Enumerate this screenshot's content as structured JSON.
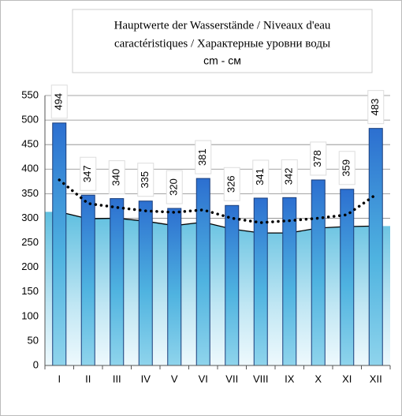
{
  "chart_data": {
    "type": "bar",
    "title": [
      "Hauptwerte der Wasserstände / Niveaux d'eau",
      "caractéristiques / Характерные уровни воды",
      "cm - см"
    ],
    "categories": [
      "I",
      "II",
      "III",
      "IV",
      "V",
      "VI",
      "VII",
      "VIII",
      "IX",
      "X",
      "XI",
      "XII"
    ],
    "series": [
      {
        "type": "bar",
        "color": "#2f7fd6",
        "values": [
          494,
          347,
          340,
          335,
          320,
          381,
          326,
          341,
          342,
          378,
          359,
          483
        ]
      },
      {
        "type": "area",
        "color": "#000000",
        "values": [
          313,
          299,
          300,
          294,
          285,
          292,
          278,
          270,
          270,
          280,
          283,
          284
        ]
      },
      {
        "type": "line",
        "style": "dotted",
        "color": "#000000",
        "values": [
          378,
          330,
          322,
          315,
          312,
          317,
          300,
          291,
          295,
          300,
          307,
          348
        ]
      }
    ],
    "ylim": [
      0,
      550
    ],
    "yticks": [
      0,
      50,
      100,
      150,
      200,
      250,
      300,
      350,
      400,
      450,
      500,
      550
    ],
    "grid": true
  }
}
